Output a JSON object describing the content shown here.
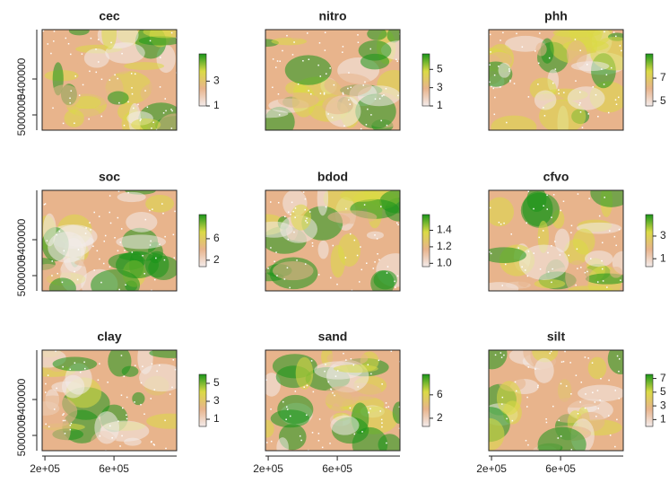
{
  "chart_data": [
    {
      "type": "raster",
      "title": "cec",
      "ylim": [
        4830000,
        5950000
      ],
      "yticks": [
        5000000,
        5400000
      ],
      "colors": [
        "#f3ebea",
        "#e8b48c",
        "#dada46",
        "#1a961a"
      ],
      "legend_lim": [
        1,
        5.2
      ],
      "legend_ticks": [
        1,
        3
      ]
    },
    {
      "type": "raster",
      "title": "nitro",
      "colors": [
        "#f3ebea",
        "#e8b48c",
        "#dada46",
        "#1a961a"
      ],
      "legend_lim": [
        1,
        6.7
      ],
      "legend_ticks": [
        1,
        3,
        5
      ]
    },
    {
      "type": "raster",
      "title": "phh",
      "colors": [
        "#f3ebea",
        "#e8b48c",
        "#dada46",
        "#1a961a"
      ],
      "legend_lim": [
        4.6,
        9.1
      ],
      "legend_ticks": [
        5,
        7
      ]
    },
    {
      "type": "raster",
      "title": "soc",
      "ylim": [
        4830000,
        5950000
      ],
      "yticks": [
        5000000,
        5400000
      ],
      "colors": [
        "#f3ebea",
        "#e8b48c",
        "#dada46",
        "#1a961a"
      ],
      "legend_lim": [
        0.8,
        10.5
      ],
      "legend_ticks": [
        2,
        6
      ]
    },
    {
      "type": "raster",
      "title": "bdod",
      "colors": [
        "#f3ebea",
        "#e8b48c",
        "#dada46",
        "#1a961a"
      ],
      "legend_lim": [
        0.96,
        1.59
      ],
      "legend_ticks": [
        {
          "value": 1.0,
          "label": "1.0"
        },
        1.2,
        1.4
      ]
    },
    {
      "type": "raster",
      "title": "cfvo",
      "colors": [
        "#f3ebea",
        "#e8b48c",
        "#dada46",
        "#1a961a"
      ],
      "legend_lim": [
        0.3,
        4.9
      ],
      "legend_ticks": [
        1,
        3
      ]
    },
    {
      "type": "raster",
      "title": "clay",
      "ylim": [
        4830000,
        5950000
      ],
      "yticks": [
        5000000,
        5400000
      ],
      "xlim": [
        184000,
        963000
      ],
      "xticks": [
        {
          "value": 200000,
          "label": "2e+05"
        },
        {
          "value": 600000,
          "label": "6e+05"
        }
      ],
      "colors": [
        "#f3ebea",
        "#e8b48c",
        "#dada46",
        "#1a961a"
      ],
      "legend_lim": [
        0.2,
        6
      ],
      "legend_ticks": [
        1,
        3,
        5
      ]
    },
    {
      "type": "raster",
      "title": "sand",
      "xlim": [
        184000,
        963000
      ],
      "xticks": [
        {
          "value": 200000,
          "label": "2e+05"
        },
        {
          "value": 600000,
          "label": "6e+05"
        }
      ],
      "colors": [
        "#f3ebea",
        "#e8b48c",
        "#dada46",
        "#1a961a"
      ],
      "legend_lim": [
        0.6,
        9.5
      ],
      "legend_ticks": [
        2,
        6
      ]
    },
    {
      "type": "raster",
      "title": "silt",
      "xlim": [
        184000,
        963000
      ],
      "xticks": [
        {
          "value": 200000,
          "label": "2e+05"
        },
        {
          "value": 600000,
          "label": "6e+05"
        }
      ],
      "colors": [
        "#f3ebea",
        "#e8b48c",
        "#dada46",
        "#1a961a"
      ],
      "legend_lim": [
        0,
        7.6
      ],
      "legend_ticks": [
        1,
        3,
        5,
        7
      ]
    }
  ]
}
